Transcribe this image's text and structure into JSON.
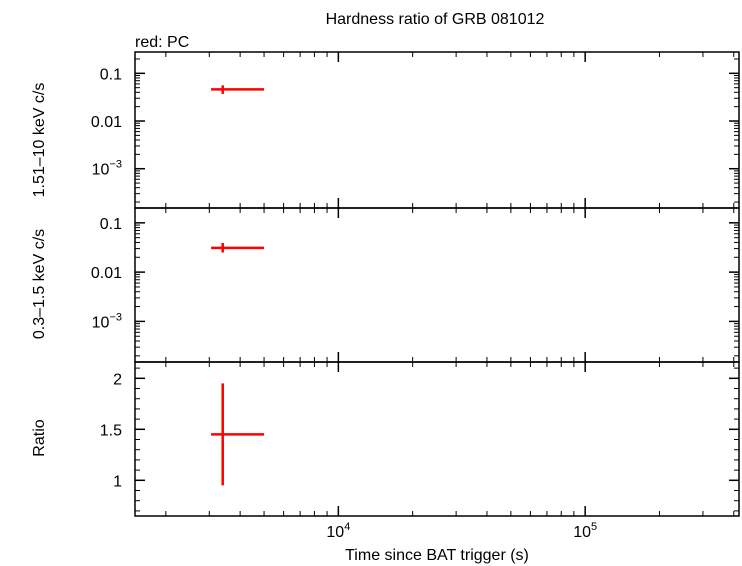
{
  "title": "Hardness ratio of GRB 081012",
  "legend_label": "red: PC",
  "xlabel": "Time since BAT trigger (s)",
  "colors": {
    "series": "#ff0000",
    "axes": "#000000"
  },
  "chart_data": {
    "type": "scatter",
    "title": "Hardness ratio of GRB 081012",
    "xlabel": "Time since BAT trigger (s)",
    "xscale": "log",
    "xlim": [
      1500,
      420000
    ],
    "x_tick_labels": [
      {
        "base": "10",
        "exp": "4",
        "value": 10000
      },
      {
        "base": "10",
        "exp": "5",
        "value": 100000
      }
    ],
    "grid": false,
    "legend": "top-left",
    "panels": [
      {
        "id": "hard",
        "ylabel": "1.51–10 keV c/s",
        "yscale": "log",
        "ylim": [
          0.00015,
          0.28
        ],
        "y_tick_labels": [
          {
            "text": "0.1",
            "value": 0.1
          },
          {
            "text": "0.01",
            "value": 0.01
          },
          {
            "base": "10",
            "exp": "−3",
            "value": 0.001
          }
        ],
        "series": [
          {
            "name": "PC",
            "color": "#ff0000",
            "points": [
              {
                "x": 3400,
                "xlo": 3050,
                "xhi": 5000,
                "y": 0.046,
                "ylo": 0.037,
                "yhi": 0.056
              }
            ]
          }
        ]
      },
      {
        "id": "soft",
        "ylabel": "0.3–1.5 keV c/s",
        "yscale": "log",
        "ylim": [
          0.00015,
          0.2
        ],
        "y_tick_labels": [
          {
            "text": "0.1",
            "value": 0.1
          },
          {
            "text": "0.01",
            "value": 0.01
          },
          {
            "base": "10",
            "exp": "−3",
            "value": 0.001
          }
        ],
        "series": [
          {
            "name": "PC",
            "color": "#ff0000",
            "points": [
              {
                "x": 3400,
                "xlo": 3050,
                "xhi": 5000,
                "y": 0.031,
                "ylo": 0.025,
                "yhi": 0.039
              }
            ]
          }
        ]
      },
      {
        "id": "ratio",
        "ylabel": "Ratio",
        "yscale": "linear",
        "ylim": [
          0.65,
          2.16
        ],
        "y_tick_labels": [
          {
            "text": "2",
            "value": 2
          },
          {
            "text": "1.5",
            "value": 1.5
          },
          {
            "text": "1",
            "value": 1
          }
        ],
        "series": [
          {
            "name": "PC",
            "color": "#ff0000",
            "points": [
              {
                "x": 3400,
                "xlo": 3050,
                "xhi": 5000,
                "y": 1.45,
                "ylo": 0.95,
                "yhi": 1.95
              }
            ]
          }
        ]
      }
    ]
  }
}
